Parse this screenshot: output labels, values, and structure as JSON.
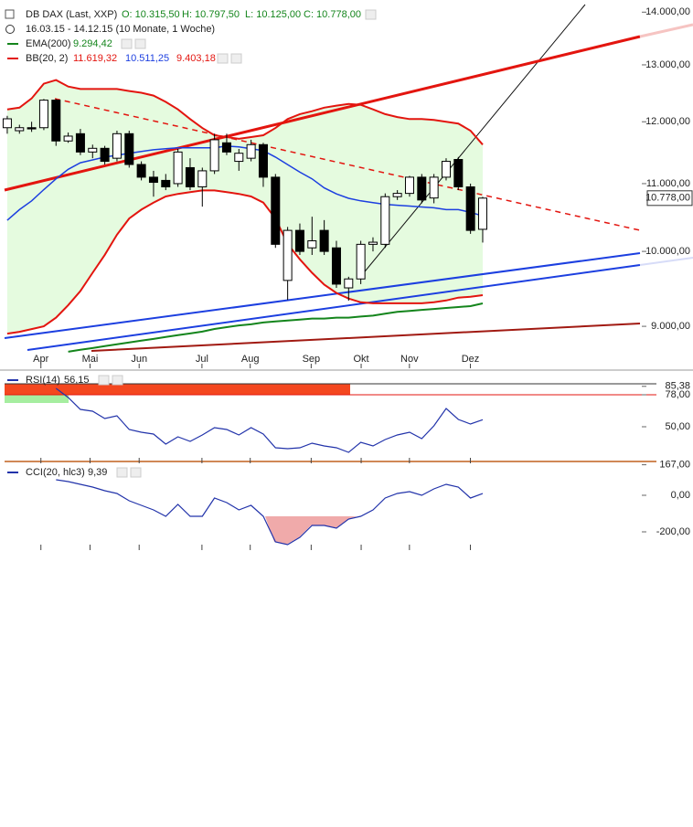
{
  "chart_data": [
    {
      "type": "candlestick",
      "title": "DB DAX (Last, XXP)",
      "ohlc_labels": [
        "O: 10.315,50",
        "H: 10.797,50",
        "L: 10.125,00",
        "C: 10.778,00"
      ],
      "range": "16.03.15 - 14.12.15 (10 Monate, 1 Woche)",
      "last_label": "10.778,00",
      "log_scale": true,
      "up_color": "#ffffff",
      "down_color": "#000000",
      "categories": [
        null,
        null,
        null,
        null,
        null,
        null,
        null,
        null,
        null,
        null,
        null,
        null,
        null,
        null,
        null,
        null,
        null,
        null,
        null,
        null,
        null,
        null,
        null,
        null,
        null,
        null,
        null,
        null,
        null,
        null,
        null,
        null,
        null,
        null,
        null,
        null,
        null,
        null,
        null,
        null
      ],
      "open": [
        11900,
        11850,
        11900,
        11900,
        12370,
        11680,
        11800,
        11500,
        11560,
        11400,
        11800,
        11300,
        11100,
        11050,
        11000,
        11250,
        10950,
        11200,
        11650,
        11350,
        11400,
        11620,
        11100,
        9600,
        10300,
        10050,
        10300,
        10050,
        9500,
        9620,
        10100,
        10100,
        10800,
        10850,
        11100,
        10780,
        11100,
        11380,
        10950,
        10315.5
      ],
      "high": [
        12100,
        11950,
        12000,
        12390,
        12390,
        11820,
        11880,
        11620,
        11600,
        11850,
        11850,
        11350,
        11200,
        11150,
        11550,
        11400,
        11250,
        11800,
        11800,
        11550,
        11700,
        11650,
        11150,
        10350,
        10400,
        10500,
        10450,
        10150,
        9650,
        10150,
        10200,
        10850,
        10900,
        11120,
        11150,
        11150,
        11400,
        11420,
        11000,
        10797.5
      ],
      "low": [
        11800,
        11800,
        11830,
        11860,
        11600,
        11650,
        11450,
        11400,
        11300,
        11350,
        11250,
        11050,
        10800,
        10900,
        10950,
        10900,
        10650,
        11150,
        11450,
        11200,
        11350,
        10950,
        10050,
        9340,
        9950,
        9950,
        9950,
        9500,
        9330,
        9550,
        10000,
        10050,
        10750,
        10800,
        10700,
        10700,
        11050,
        10900,
        10250,
        10125
      ],
      "close": [
        12050,
        11900,
        11880,
        12370,
        11680,
        11760,
        11500,
        11560,
        11350,
        11800,
        11300,
        11100,
        11020,
        10950,
        11500,
        10950,
        11200,
        11700,
        11500,
        11480,
        11620,
        11100,
        10100,
        10300,
        10000,
        10150,
        10000,
        9550,
        9620,
        10100,
        10130,
        10800,
        10850,
        11100,
        10750,
        11100,
        11350,
        10950,
        10300,
        10778
      ],
      "ema": {
        "name": "EMA(200)",
        "value_label": "9.294,42",
        "color": "#14851c",
        "values": [
          null,
          null,
          null,
          null,
          null,
          8684,
          8707,
          8729,
          8752,
          8775,
          8797,
          8820,
          8842,
          8865,
          8888,
          8910,
          8933,
          8966,
          8989,
          9012,
          9025,
          9049,
          9062,
          9074,
          9086,
          9099,
          9099,
          9111,
          9111,
          9124,
          9136,
          9161,
          9185,
          9198,
          9210,
          9222,
          9235,
          9247,
          9259,
          9294.42
        ]
      },
      "bb": {
        "name": "BB(20, 2)",
        "fill": "#e5fbdf",
        "upper": {
          "value_label": "11.619,32",
          "color": "#e3150f",
          "values": [
            12210,
            12240,
            12400,
            12660,
            12725,
            12610,
            12565,
            12565,
            12565,
            12565,
            12530,
            12500,
            12450,
            12340,
            12210,
            12045,
            11895,
            11775,
            11745,
            11715,
            11745,
            11775,
            11895,
            12045,
            12130,
            12180,
            12240,
            12275,
            12305,
            12290,
            12210,
            12130,
            12080,
            12045,
            12045,
            12030,
            12000,
            11970,
            11850,
            11619.32
          ]
        },
        "middle": {
          "value_label": "10.511,25",
          "color": "#1c3fe0",
          "values": [
            10447,
            10605,
            10737,
            10908,
            11075,
            11224,
            11328,
            11373,
            11418,
            11448,
            11478,
            11508,
            11537,
            11552,
            11567,
            11567,
            11567,
            11567,
            11597,
            11582,
            11552,
            11522,
            11418,
            11299,
            11179,
            11075,
            10934,
            10842,
            10776,
            10737,
            10711,
            10684,
            10671,
            10658,
            10645,
            10632,
            10605,
            10605,
            10566,
            10511.25
          ]
        },
        "lower": {
          "value_label": "9.403,18",
          "color": "#e3150f",
          "values": [
            8908,
            8931,
            8965,
            9000,
            9111,
            9272,
            9457,
            9704,
            9951,
            10237,
            10474,
            10605,
            10711,
            10803,
            10842,
            10868,
            10895,
            10895,
            10868,
            10842,
            10803,
            10711,
            10474,
            10105,
            9889,
            9704,
            9543,
            9432,
            9358,
            9309,
            9296,
            9296,
            9296,
            9296,
            9296,
            9309,
            9333,
            9370,
            9383,
            9403.18
          ]
        }
      },
      "xlim": [
        -0.22,
        51.9
      ],
      "xticks": [
        {
          "value": 2.76,
          "label": "Apr"
        },
        {
          "value": 6.79,
          "label": "Mai"
        },
        {
          "value": 10.82,
          "label": "Jun"
        },
        {
          "value": 15.97,
          "label": "Jul"
        },
        {
          "value": 19.93,
          "label": "Aug"
        },
        {
          "value": 24.93,
          "label": "Sep"
        },
        {
          "value": 29.03,
          "label": "Okt"
        },
        {
          "value": 32.99,
          "label": "Nov"
        },
        {
          "value": 37.99,
          "label": "Dez"
        }
      ],
      "ylim": [
        8550,
        14150
      ],
      "yticks": [
        {
          "value": 9000,
          "label": "9.000,00"
        },
        {
          "value": 10000,
          "label": "10.000,00"
        },
        {
          "value": 11000,
          "label": "11.000,00"
        },
        {
          "value": 12000,
          "label": "12.000,00"
        },
        {
          "value": 13000,
          "label": "13.000,00"
        },
        {
          "value": 14000,
          "label": "14.000,00"
        }
      ]
    },
    {
      "type": "line",
      "title": "RSI(14)",
      "value_label": "56,15",
      "color": "#2233aa",
      "values": [
        null,
        null,
        null,
        null,
        83.6,
        75.6,
        65.2,
        63.6,
        57.2,
        59.6,
        47.6,
        45.2,
        43.6,
        34.8,
        41.2,
        37.2,
        42.8,
        49.2,
        47.6,
        42.8,
        49.2,
        43.6,
        31.6,
        30.8,
        31.6,
        35.6,
        33.2,
        31.6,
        27.6,
        36.4,
        33.2,
        38.8,
        42.8,
        45.2,
        39.6,
        50.8,
        66,
        56.4,
        52.4,
        56.15
      ],
      "ylim": [
        19.6,
        95.6
      ],
      "yticks": [
        {
          "value": 50,
          "label": "50,00"
        },
        {
          "value": 78,
          "label": "78,00"
        },
        {
          "value": 85.38,
          "label": "85,38"
        }
      ]
    },
    {
      "type": "line",
      "title": "CCI(20, hlc3)",
      "value_label": "9,39",
      "color": "#2233aa",
      "values": [
        null,
        null,
        null,
        null,
        85,
        75,
        60,
        45,
        25,
        10,
        -30,
        -55,
        -80,
        -115,
        -50,
        -115,
        -115,
        -15,
        -40,
        -80,
        -55,
        -115,
        -255,
        -270,
        -230,
        -165,
        -165,
        -180,
        -130,
        -115,
        -80,
        -15,
        10,
        20,
        0,
        35,
        60,
        45,
        -15,
        9.39
      ],
      "ylim": [
        -290,
        170
      ],
      "yticks": [
        {
          "value": -200,
          "label": "-200,00"
        },
        {
          "value": 0,
          "label": "0,00"
        },
        {
          "value": 167,
          "label": "167,00"
        }
      ]
    }
  ]
}
